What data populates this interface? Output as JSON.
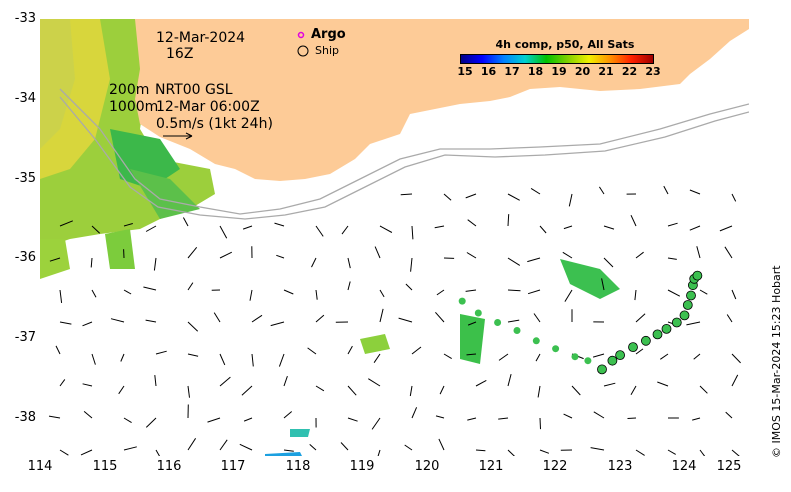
{
  "map": {
    "date_line": "12-Mar-2024",
    "time_line": "16Z",
    "depth_200": "200m",
    "product": "NRT00 GSL",
    "depth_1000": "1000m",
    "contour_time": "12-Mar 06:00Z",
    "arrow_scale": "0.5m/s (1kt 24h)",
    "credit": "© IMOS 15-Mar-2024 15:23 Hobart",
    "colors": {
      "land": "#fdcb97",
      "ocean": "#ffffff",
      "isobath": "#aaaaaa"
    }
  },
  "legend": {
    "argo_label": "Argo",
    "ship_label": "Ship",
    "argo_color": "#e000e0"
  },
  "colorbar": {
    "title": "4h comp, p50, All Sats",
    "ticks": [
      "15",
      "16",
      "17",
      "18",
      "19",
      "20",
      "21",
      "22",
      "23"
    ],
    "colors": [
      "#000088",
      "#0000ff",
      "#0080ff",
      "#00d0d0",
      "#00c000",
      "#80d000",
      "#f0f000",
      "#ff9000",
      "#ff2000",
      "#a00000"
    ]
  },
  "axes": {
    "lon_ticks": [
      "114",
      "115",
      "116",
      "117",
      "118",
      "119",
      "120",
      "121",
      "122",
      "123",
      "124",
      "125"
    ],
    "lat_ticks": [
      "-33",
      "-34",
      "-35",
      "-36",
      "-37",
      "-38"
    ]
  },
  "ship_track": {
    "units": "degrees lon/lat",
    "points": [
      [
        122.72,
        -37.41
      ],
      [
        122.88,
        -37.3
      ],
      [
        123.0,
        -37.23
      ],
      [
        123.2,
        -37.13
      ],
      [
        123.4,
        -37.05
      ],
      [
        123.58,
        -36.97
      ],
      [
        123.72,
        -36.9
      ],
      [
        123.88,
        -36.82
      ],
      [
        124.0,
        -36.73
      ],
      [
        124.05,
        -36.6
      ],
      [
        124.1,
        -36.48
      ],
      [
        124.13,
        -36.35
      ],
      [
        124.15,
        -36.27
      ],
      [
        124.2,
        -36.23
      ]
    ]
  }
}
